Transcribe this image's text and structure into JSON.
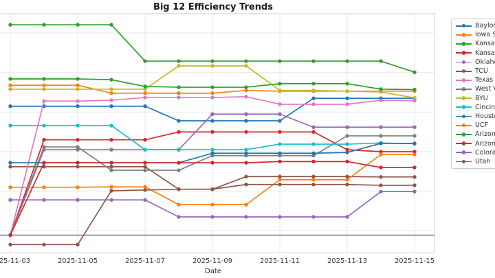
{
  "figure": {
    "title": "Big 12 Efficiency Trends",
    "x_axis_label": "Date",
    "x_tick_labels": [
      "2025-11-03",
      "2025-11-05",
      "2025-11-07",
      "2025-11-09",
      "2025-11-11",
      "2025-11-13",
      "2025-11-15"
    ],
    "y_axis_tick_labels_visible": false,
    "colors": {
      "gridline": "#e7e7e7",
      "spine": "#cfcfcf",
      "reference_line": "#555555",
      "title_text": "#1a1a1a",
      "tick_text": "#3b3b3b",
      "legend_text": "#333333",
      "legend_border": "#cccccc"
    }
  },
  "chart_data": {
    "type": "line",
    "title": "Big 12 Efficiency Trends",
    "xlabel": "Date",
    "ylabel": "",
    "x": [
      "2025-11-03",
      "2025-11-04",
      "2025-11-05",
      "2025-11-06",
      "2025-11-07",
      "2025-11-08",
      "2025-11-09",
      "2025-11-10",
      "2025-11-11",
      "2025-11-12",
      "2025-11-13",
      "2025-11-14",
      "2025-11-15"
    ],
    "x_ticks_shown": [
      "2025-11-03",
      "2025-11-05",
      "2025-11-07",
      "2025-11-09",
      "2025-11-11",
      "2025-11-13",
      "2025-11-15"
    ],
    "ylim": [
      -0.45,
      5.6
    ],
    "y_units": "relative efficiency (y-axis labels cropped out of frame; values estimated in gridline units, reference line = 0)",
    "grid": true,
    "markers": true,
    "legend_position": "right, clipped by image edge",
    "reference_line_y": 0.0,
    "series": [
      {
        "name": "Baylor",
        "color": "#1f77b4",
        "values": [
          3.26,
          3.26,
          3.26,
          3.26,
          3.26,
          2.89,
          2.89,
          2.89,
          2.89,
          3.46,
          3.46,
          3.46,
          3.46
        ]
      },
      {
        "name": "Iowa S",
        "color": "#ff7f0e",
        "values": [
          3.79,
          3.79,
          3.79,
          3.59,
          3.59,
          3.59,
          3.59,
          3.66,
          3.64,
          3.64,
          3.64,
          3.64,
          3.64
        ]
      },
      {
        "name": "Kansas",
        "color": "#2ca02c",
        "values": [
          5.32,
          5.32,
          5.32,
          5.32,
          4.4,
          4.4,
          4.4,
          4.4,
          4.4,
          4.4,
          4.4,
          4.4,
          4.12
        ]
      },
      {
        "name": "Kansas",
        "color": "#d62728",
        "values": [
          0.0,
          2.41,
          2.41,
          2.41,
          2.41,
          2.61,
          2.61,
          2.61,
          2.61,
          2.61,
          2.16,
          2.11,
          2.11
        ]
      },
      {
        "name": "Oklaho",
        "color": "#9467bd",
        "values": [
          0.0,
          2.16,
          2.16,
          2.16,
          2.16,
          2.16,
          3.06,
          3.06,
          3.06,
          2.73,
          2.73,
          2.73,
          2.73
        ]
      },
      {
        "name": "TCU",
        "color": "#8c564b",
        "values": [
          1.73,
          1.73,
          1.73,
          1.73,
          1.73,
          1.16,
          1.16,
          1.48,
          1.48,
          1.48,
          1.48,
          1.47,
          1.47
        ]
      },
      {
        "name": "Texas T",
        "color": "#e377c2",
        "values": [
          0.0,
          3.39,
          3.39,
          3.41,
          3.48,
          3.48,
          3.48,
          3.5,
          3.31,
          3.31,
          3.31,
          3.41,
          3.4
        ]
      },
      {
        "name": "West V",
        "color": "#7f7f7f",
        "values": [
          0.0,
          2.23,
          2.23,
          1.64,
          1.64,
          1.64,
          2.01,
          2.01,
          2.01,
          2.01,
          2.51,
          2.51,
          2.51
        ]
      },
      {
        "name": "BYU",
        "color": "#bcbd22",
        "values": [
          3.69,
          3.69,
          3.69,
          3.69,
          3.69,
          4.28,
          4.28,
          4.28,
          3.66,
          3.66,
          3.64,
          3.62,
          3.47
        ]
      },
      {
        "name": "Cincin",
        "color": "#17becf",
        "values": [
          2.77,
          2.77,
          2.77,
          2.77,
          2.16,
          2.16,
          2.16,
          2.16,
          2.3,
          2.3,
          2.3,
          2.33,
          2.31
        ]
      },
      {
        "name": "Housto",
        "color": "#1f77b4",
        "values": [
          1.83,
          1.83,
          1.83,
          1.83,
          1.83,
          1.83,
          2.07,
          2.07,
          2.07,
          2.07,
          2.09,
          2.32,
          2.32
        ]
      },
      {
        "name": "UCF",
        "color": "#ff7f0e",
        "values": [
          1.21,
          1.21,
          1.21,
          1.22,
          1.22,
          0.77,
          0.77,
          0.77,
          1.4,
          1.4,
          1.4,
          2.04,
          2.04
        ]
      },
      {
        "name": "Arizon",
        "color": "#2ca02c",
        "values": [
          3.95,
          3.95,
          3.95,
          3.93,
          3.76,
          3.74,
          3.74,
          3.74,
          3.83,
          3.83,
          3.83,
          3.69,
          3.68
        ]
      },
      {
        "name": "Arizon",
        "color": "#d62728",
        "values": [
          0.0,
          1.83,
          1.83,
          1.83,
          1.83,
          1.83,
          1.83,
          1.83,
          1.86,
          1.86,
          1.86,
          1.71,
          1.71
        ]
      },
      {
        "name": "Colora",
        "color": "#9467bd",
        "values": [
          0.89,
          0.89,
          0.89,
          0.89,
          0.89,
          0.46,
          0.46,
          0.46,
          0.46,
          0.46,
          0.46,
          1.1,
          1.1
        ]
      },
      {
        "name": "Utah",
        "color": "#8c564b",
        "values": [
          -0.24,
          -0.24,
          -0.24,
          1.12,
          1.14,
          1.16,
          1.16,
          1.28,
          1.28,
          1.28,
          1.28,
          1.26,
          1.26
        ]
      }
    ]
  }
}
